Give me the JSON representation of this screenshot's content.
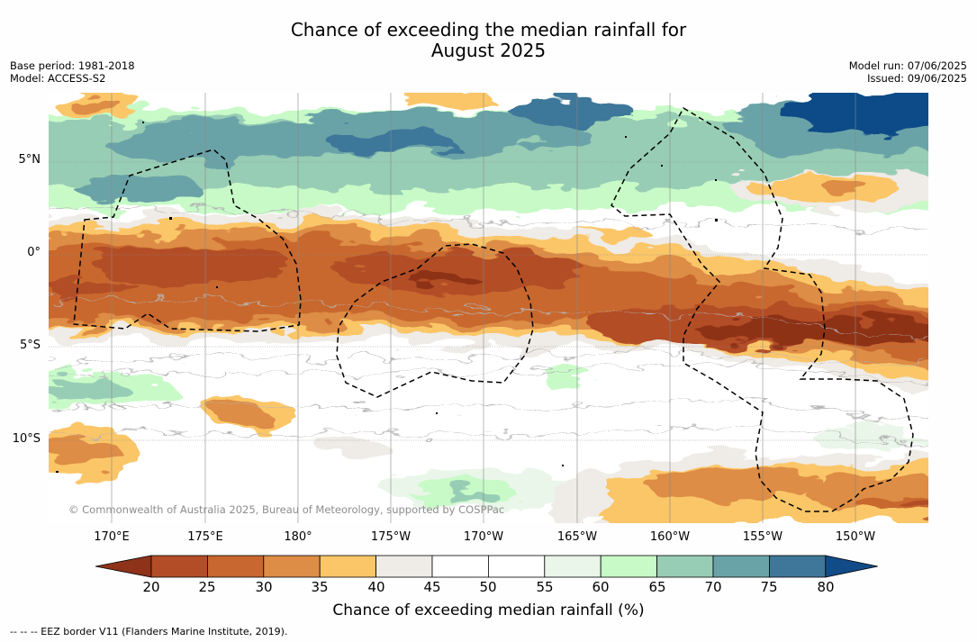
{
  "title_line1": "Chance of exceeding the median rainfall for",
  "title_line2": "August 2025",
  "base_period": "Base period: 1981-2018",
  "model": "Model: ACCESS-S2",
  "model_run": "Model run: 07/06/2025",
  "issued": "Issued: 09/06/2025",
  "copyright": "© Commonwealth of Australia 2025, Bureau of Meteorology, supported by COSPPac",
  "lat_ticks": [
    "5°N",
    "0°",
    "5°S",
    "10°S"
  ],
  "lon_ticks": [
    "170°E",
    "175°E",
    "180°",
    "175°W",
    "170°W",
    "165°W",
    "160°W",
    "155°W",
    "150°W"
  ],
  "colorbar": {
    "label": "Chance of exceeding median rainfall (%)",
    "ticks": [
      "20",
      "25",
      "30",
      "35",
      "40",
      "45",
      "50",
      "55",
      "60",
      "65",
      "70",
      "75",
      "80"
    ],
    "colors": [
      "#8e3219",
      "#b34d28",
      "#c8672f",
      "#dd8d45",
      "#fbc668",
      "#efebe6",
      "#ffffff",
      "#ffffff",
      "#e9f6e9",
      "#c8fac8",
      "#98cdb5",
      "#6aa3a7",
      "#3e7799",
      "#114b88"
    ]
  },
  "footnote": "-- -- -- EEZ border V11 (Flanders Marine Institute, 2019)."
}
